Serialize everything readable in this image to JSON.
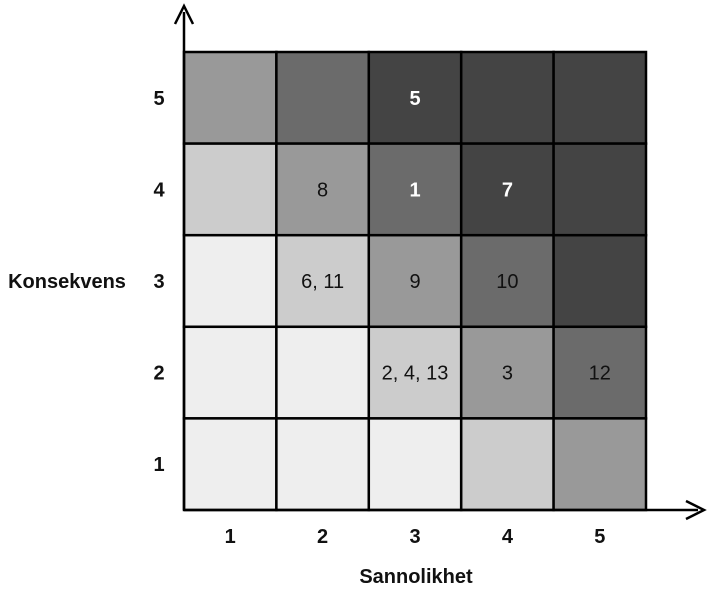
{
  "chart_data": {
    "type": "heatmap",
    "xlabel": "Sannolikhet",
    "ylabel": "Konsekvens",
    "x_ticks": [
      "1",
      "2",
      "3",
      "4",
      "5"
    ],
    "y_ticks": [
      "1",
      "2",
      "3",
      "4",
      "5"
    ],
    "shades": {
      "very_light": "#eeeeee",
      "light": "#cccccc",
      "medium": "#999999",
      "dark": "#6b6b6b",
      "very_dark": "#444444"
    },
    "rows": [
      {
        "y": "5",
        "cells": [
          {
            "x": "1",
            "shade": "medium",
            "label": "",
            "label_color": "#111111",
            "bold": false
          },
          {
            "x": "2",
            "shade": "dark",
            "label": "",
            "label_color": "#111111",
            "bold": false
          },
          {
            "x": "3",
            "shade": "very_dark",
            "label": "5",
            "label_color": "#ffffff",
            "bold": true
          },
          {
            "x": "4",
            "shade": "very_dark",
            "label": "",
            "label_color": "#111111",
            "bold": false
          },
          {
            "x": "5",
            "shade": "very_dark",
            "label": "",
            "label_color": "#111111",
            "bold": false
          }
        ]
      },
      {
        "y": "4",
        "cells": [
          {
            "x": "1",
            "shade": "light",
            "label": "",
            "label_color": "#111111",
            "bold": false
          },
          {
            "x": "2",
            "shade": "medium",
            "label": "8",
            "label_color": "#111111",
            "bold": false
          },
          {
            "x": "3",
            "shade": "dark",
            "label": "1",
            "label_color": "#ffffff",
            "bold": true
          },
          {
            "x": "4",
            "shade": "very_dark",
            "label": "7",
            "label_color": "#ffffff",
            "bold": true
          },
          {
            "x": "5",
            "shade": "very_dark",
            "label": "",
            "label_color": "#111111",
            "bold": false
          }
        ]
      },
      {
        "y": "3",
        "cells": [
          {
            "x": "1",
            "shade": "very_light",
            "label": "",
            "label_color": "#111111",
            "bold": false
          },
          {
            "x": "2",
            "shade": "light",
            "label": "6, 11",
            "label_color": "#111111",
            "bold": false
          },
          {
            "x": "3",
            "shade": "medium",
            "label": "9",
            "label_color": "#111111",
            "bold": false
          },
          {
            "x": "4",
            "shade": "dark",
            "label": "10",
            "label_color": "#111111",
            "bold": false
          },
          {
            "x": "5",
            "shade": "very_dark",
            "label": "",
            "label_color": "#111111",
            "bold": false
          }
        ]
      },
      {
        "y": "2",
        "cells": [
          {
            "x": "1",
            "shade": "very_light",
            "label": "",
            "label_color": "#111111",
            "bold": false
          },
          {
            "x": "2",
            "shade": "very_light",
            "label": "",
            "label_color": "#111111",
            "bold": false
          },
          {
            "x": "3",
            "shade": "light",
            "label": "2, 4, 13",
            "label_color": "#111111",
            "bold": false
          },
          {
            "x": "4",
            "shade": "medium",
            "label": "3",
            "label_color": "#111111",
            "bold": false
          },
          {
            "x": "5",
            "shade": "dark",
            "label": "12",
            "label_color": "#111111",
            "bold": false
          }
        ]
      },
      {
        "y": "1",
        "cells": [
          {
            "x": "1",
            "shade": "very_light",
            "label": "",
            "label_color": "#111111",
            "bold": false
          },
          {
            "x": "2",
            "shade": "very_light",
            "label": "",
            "label_color": "#111111",
            "bold": false
          },
          {
            "x": "3",
            "shade": "very_light",
            "label": "",
            "label_color": "#111111",
            "bold": false
          },
          {
            "x": "4",
            "shade": "light",
            "label": "",
            "label_color": "#111111",
            "bold": false
          },
          {
            "x": "5",
            "shade": "medium",
            "label": "",
            "label_color": "#111111",
            "bold": false
          }
        ]
      }
    ]
  }
}
